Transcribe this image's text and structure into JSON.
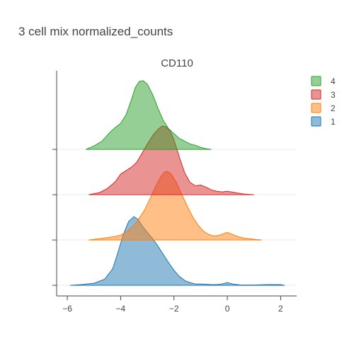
{
  "chart_data": {
    "type": "area",
    "title": "3 cell mix normalized_counts",
    "subtitle": "CD110",
    "xlabel": "",
    "ylabel": "",
    "xlim": [
      -6.4,
      2.6
    ],
    "x_ticks": [
      -6,
      -4,
      -2,
      0,
      2
    ],
    "x_tick_labels": [
      "−6",
      "−4",
      "−2",
      "0",
      "2"
    ],
    "legend_position": "top-right",
    "legend_order": [
      "4",
      "3",
      "2",
      "1"
    ],
    "series": [
      {
        "name": "1",
        "color": "#1f77b4",
        "x": [
          -5.9,
          -5.5,
          -5.0,
          -4.6,
          -4.3,
          -4.1,
          -3.9,
          -3.7,
          -3.5,
          -3.35,
          -3.2,
          -3.0,
          -2.8,
          -2.6,
          -2.4,
          -2.2,
          -2.0,
          -1.8,
          -1.6,
          -1.4,
          -1.2,
          -1.0,
          -0.8,
          -0.6,
          -0.4,
          -0.2,
          0.0,
          0.2,
          0.5,
          1.0,
          1.5,
          2.0,
          2.15
        ],
        "density": [
          0.0,
          0.01,
          0.03,
          0.09,
          0.24,
          0.48,
          0.74,
          0.93,
          1.0,
          0.96,
          0.87,
          0.77,
          0.68,
          0.57,
          0.45,
          0.33,
          0.22,
          0.13,
          0.07,
          0.04,
          0.02,
          0.02,
          0.015,
          0.01,
          0.01,
          0.02,
          0.04,
          0.02,
          0.005,
          0.005,
          0.01,
          0.01,
          0.0
        ]
      },
      {
        "name": "2",
        "color": "#ff7f0e",
        "x": [
          -5.2,
          -4.8,
          -4.4,
          -4.0,
          -3.7,
          -3.4,
          -3.1,
          -2.9,
          -2.7,
          -2.5,
          -2.35,
          -2.25,
          -2.1,
          -1.9,
          -1.7,
          -1.5,
          -1.3,
          -1.1,
          -0.9,
          -0.7,
          -0.5,
          -0.3,
          -0.1,
          0.0,
          0.2,
          0.4,
          0.6,
          0.8,
          1.0,
          1.3
        ],
        "density": [
          0.0,
          0.02,
          0.04,
          0.07,
          0.14,
          0.26,
          0.44,
          0.6,
          0.77,
          0.92,
          0.99,
          1.0,
          0.96,
          0.83,
          0.66,
          0.49,
          0.34,
          0.22,
          0.13,
          0.08,
          0.06,
          0.07,
          0.1,
          0.11,
          0.08,
          0.05,
          0.03,
          0.02,
          0.01,
          0.0
        ]
      },
      {
        "name": "3",
        "color": "#d62728",
        "x": [
          -5.2,
          -4.8,
          -4.5,
          -4.2,
          -4.0,
          -3.8,
          -3.6,
          -3.4,
          -3.2,
          -3.0,
          -2.8,
          -2.6,
          -2.45,
          -2.3,
          -2.15,
          -2.0,
          -1.8,
          -1.6,
          -1.4,
          -1.2,
          -1.0,
          -0.8,
          -0.6,
          -0.4,
          -0.2,
          0.0,
          0.3,
          0.6,
          1.0
        ],
        "density": [
          0.0,
          0.03,
          0.09,
          0.19,
          0.3,
          0.35,
          0.4,
          0.47,
          0.6,
          0.74,
          0.86,
          0.95,
          1.0,
          0.99,
          0.93,
          0.8,
          0.55,
          0.32,
          0.18,
          0.13,
          0.14,
          0.11,
          0.07,
          0.05,
          0.04,
          0.05,
          0.03,
          0.01,
          0.0
        ]
      },
      {
        "name": "4",
        "color": "#2ca02c",
        "x": [
          -5.3,
          -5.0,
          -4.7,
          -4.4,
          -4.2,
          -4.0,
          -3.8,
          -3.6,
          -3.45,
          -3.3,
          -3.15,
          -3.0,
          -2.8,
          -2.6,
          -2.4,
          -2.2,
          -2.0,
          -1.8,
          -1.6,
          -1.4,
          -1.2,
          -1.0,
          -0.8,
          -0.6
        ],
        "density": [
          0.0,
          0.05,
          0.12,
          0.25,
          0.32,
          0.38,
          0.5,
          0.72,
          0.9,
          0.99,
          1.0,
          0.95,
          0.8,
          0.6,
          0.42,
          0.3,
          0.23,
          0.16,
          0.12,
          0.08,
          0.06,
          0.03,
          0.01,
          0.0
        ]
      }
    ]
  }
}
